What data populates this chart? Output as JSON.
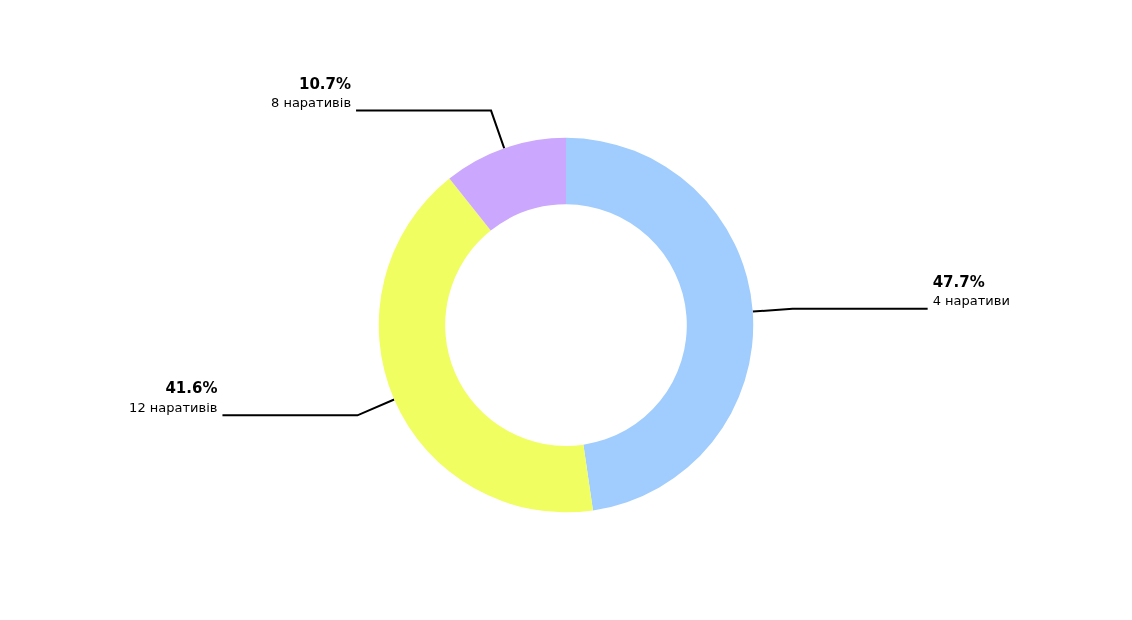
{
  "chart_data": {
    "type": "donut",
    "categories": [
      "4 наративи",
      "12 наративів",
      "8 наративів"
    ],
    "values": [
      47.7,
      41.6,
      10.7
    ],
    "value_labels": [
      "47.7%",
      "41.6%",
      "10.7%"
    ],
    "colors": [
      "#a0cdfd",
      "#f0fe62",
      "#cba8fd"
    ],
    "legend": false
  }
}
